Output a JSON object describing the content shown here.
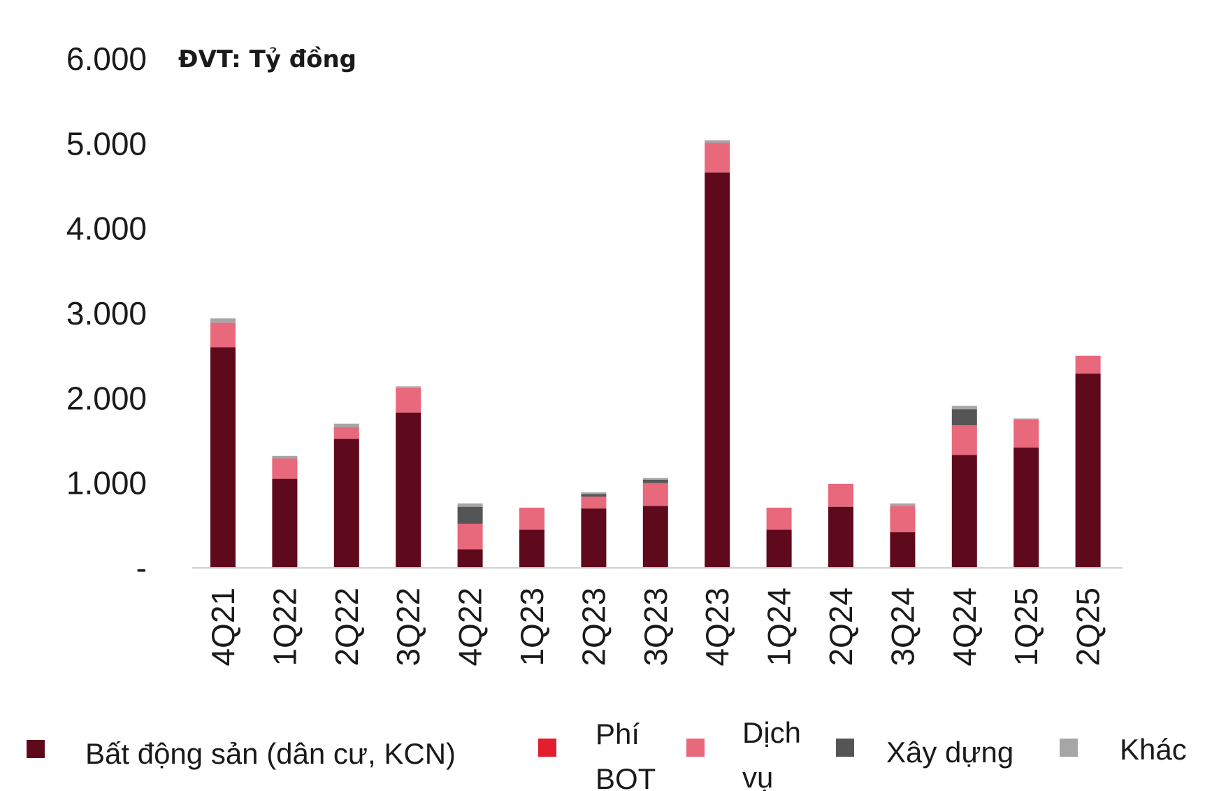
{
  "chart_data": {
    "type": "bar",
    "stacked": true,
    "unit_label": "ĐVT: Tỷ đồng",
    "categories": [
      "4Q21",
      "1Q22",
      "2Q22",
      "3Q22",
      "4Q22",
      "1Q23",
      "2Q23",
      "3Q23",
      "4Q23",
      "1Q24",
      "2Q24",
      "3Q24",
      "4Q24",
      "1Q25",
      "2Q25"
    ],
    "ylim": [
      0,
      6000
    ],
    "yticks": [
      {
        "value": 0,
        "label": "-"
      },
      {
        "value": 1000,
        "label": "1.000"
      },
      {
        "value": 2000,
        "label": "2.000"
      },
      {
        "value": 3000,
        "label": "3.000"
      },
      {
        "value": 4000,
        "label": "4.000"
      },
      {
        "value": 5000,
        "label": "5.000"
      },
      {
        "value": 6000,
        "label": "6.000"
      }
    ],
    "grid": false,
    "legend_position": "bottom",
    "series": [
      {
        "name": "Bất động sản (dân cư, KCN)",
        "color": "#5e0a1c",
        "values": [
          2600,
          1050,
          1520,
          1830,
          220,
          450,
          700,
          730,
          4660,
          450,
          720,
          420,
          1330,
          1420,
          2290
        ]
      },
      {
        "name": "Phí BOT",
        "color": "#e31e2d",
        "values": [
          0,
          0,
          0,
          0,
          0,
          0,
          0,
          0,
          0,
          0,
          0,
          0,
          0,
          0,
          0
        ]
      },
      {
        "name": "Dịch vụ",
        "color": "#e8687c",
        "values": [
          290,
          240,
          140,
          290,
          300,
          260,
          140,
          270,
          350,
          260,
          270,
          310,
          350,
          330,
          210
        ]
      },
      {
        "name": "Xây dựng",
        "color": "#555555",
        "values": [
          0,
          0,
          0,
          0,
          200,
          0,
          30,
          40,
          0,
          0,
          0,
          0,
          190,
          0,
          0
        ]
      },
      {
        "name": "Khác",
        "color": "#a6a6a6",
        "values": [
          50,
          30,
          40,
          20,
          40,
          0,
          20,
          20,
          30,
          0,
          0,
          30,
          40,
          10,
          0
        ]
      }
    ]
  }
}
